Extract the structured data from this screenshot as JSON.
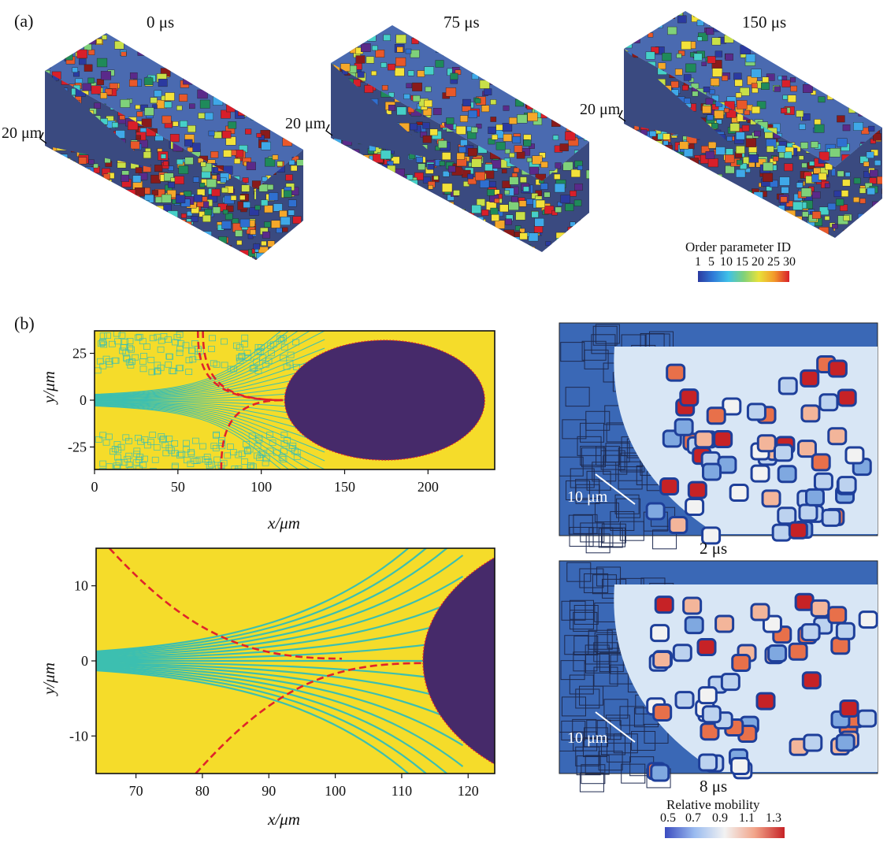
{
  "figure": {
    "panel_a_label": "(a)",
    "panel_b_label": "(b)",
    "blocks": [
      {
        "time": "0 μs",
        "scale": "20 μm"
      },
      {
        "time": "75 μs",
        "scale": "20 μm"
      },
      {
        "time": "150 μs",
        "scale": "20 μm"
      }
    ],
    "order_colorbar": {
      "title": "Order parameter ID",
      "ticks": [
        "1",
        "5",
        "10",
        "15",
        "20",
        "25",
        "30"
      ]
    },
    "mobility_views": [
      {
        "time": "2 μs",
        "scale": "10 μm"
      },
      {
        "time": "8 μs",
        "scale": "10 μm"
      }
    ],
    "mobility_colorbar": {
      "title": "Relative mobility",
      "ticks": [
        "0.5",
        "0.7",
        "0.9",
        "1.1",
        "1.3"
      ]
    },
    "colors": {
      "grain_fill": "#f5dc2a",
      "boundary": "#3cbfb0",
      "melt_pool": "#462a6a",
      "highlight": "#e0242a",
      "mobility_bg": "#3a68b6"
    },
    "icons": [
      "scale-bar-icon",
      "dashed-boundary-line-icon"
    ]
  },
  "chart_data": [
    {
      "type": "other",
      "subtype": "phase-field map",
      "xlabel": "x/μm",
      "ylabel": "y/μm",
      "xlim": [
        0,
        240
      ],
      "ylim": [
        -37,
        37
      ],
      "xticks": [
        0,
        50,
        100,
        150,
        200
      ],
      "yticks": [
        25,
        0,
        -25
      ],
      "melt_pool": {
        "x_start": 114,
        "x_end": 234,
        "center_y": 0,
        "half_height": 32
      },
      "dashed_lines": [
        {
          "x_top": 62,
          "x_bottom": 60,
          "meets_axis_at_x": 113
        },
        {
          "x_top": 65,
          "x_bottom": 76,
          "meets_axis_at_x": 113
        }
      ]
    },
    {
      "type": "other",
      "subtype": "phase-field map (zoom)",
      "xlabel": "x/μm",
      "ylabel": "y/μm",
      "xlim": [
        64,
        124
      ],
      "ylim": [
        -15,
        15
      ],
      "xticks": [
        70,
        80,
        90,
        100,
        110,
        120
      ],
      "yticks": [
        10,
        0,
        -10
      ],
      "melt_pool": {
        "x_start": 113.2,
        "center_y": 0
      },
      "dashed_lines": [
        {
          "x_start": 66,
          "y_start": 15,
          "x_end": 101,
          "y_end": 0.3
        },
        {
          "x_start": 79,
          "y_start": -15,
          "x_end": 113,
          "y_end": -0.3
        }
      ]
    }
  ]
}
